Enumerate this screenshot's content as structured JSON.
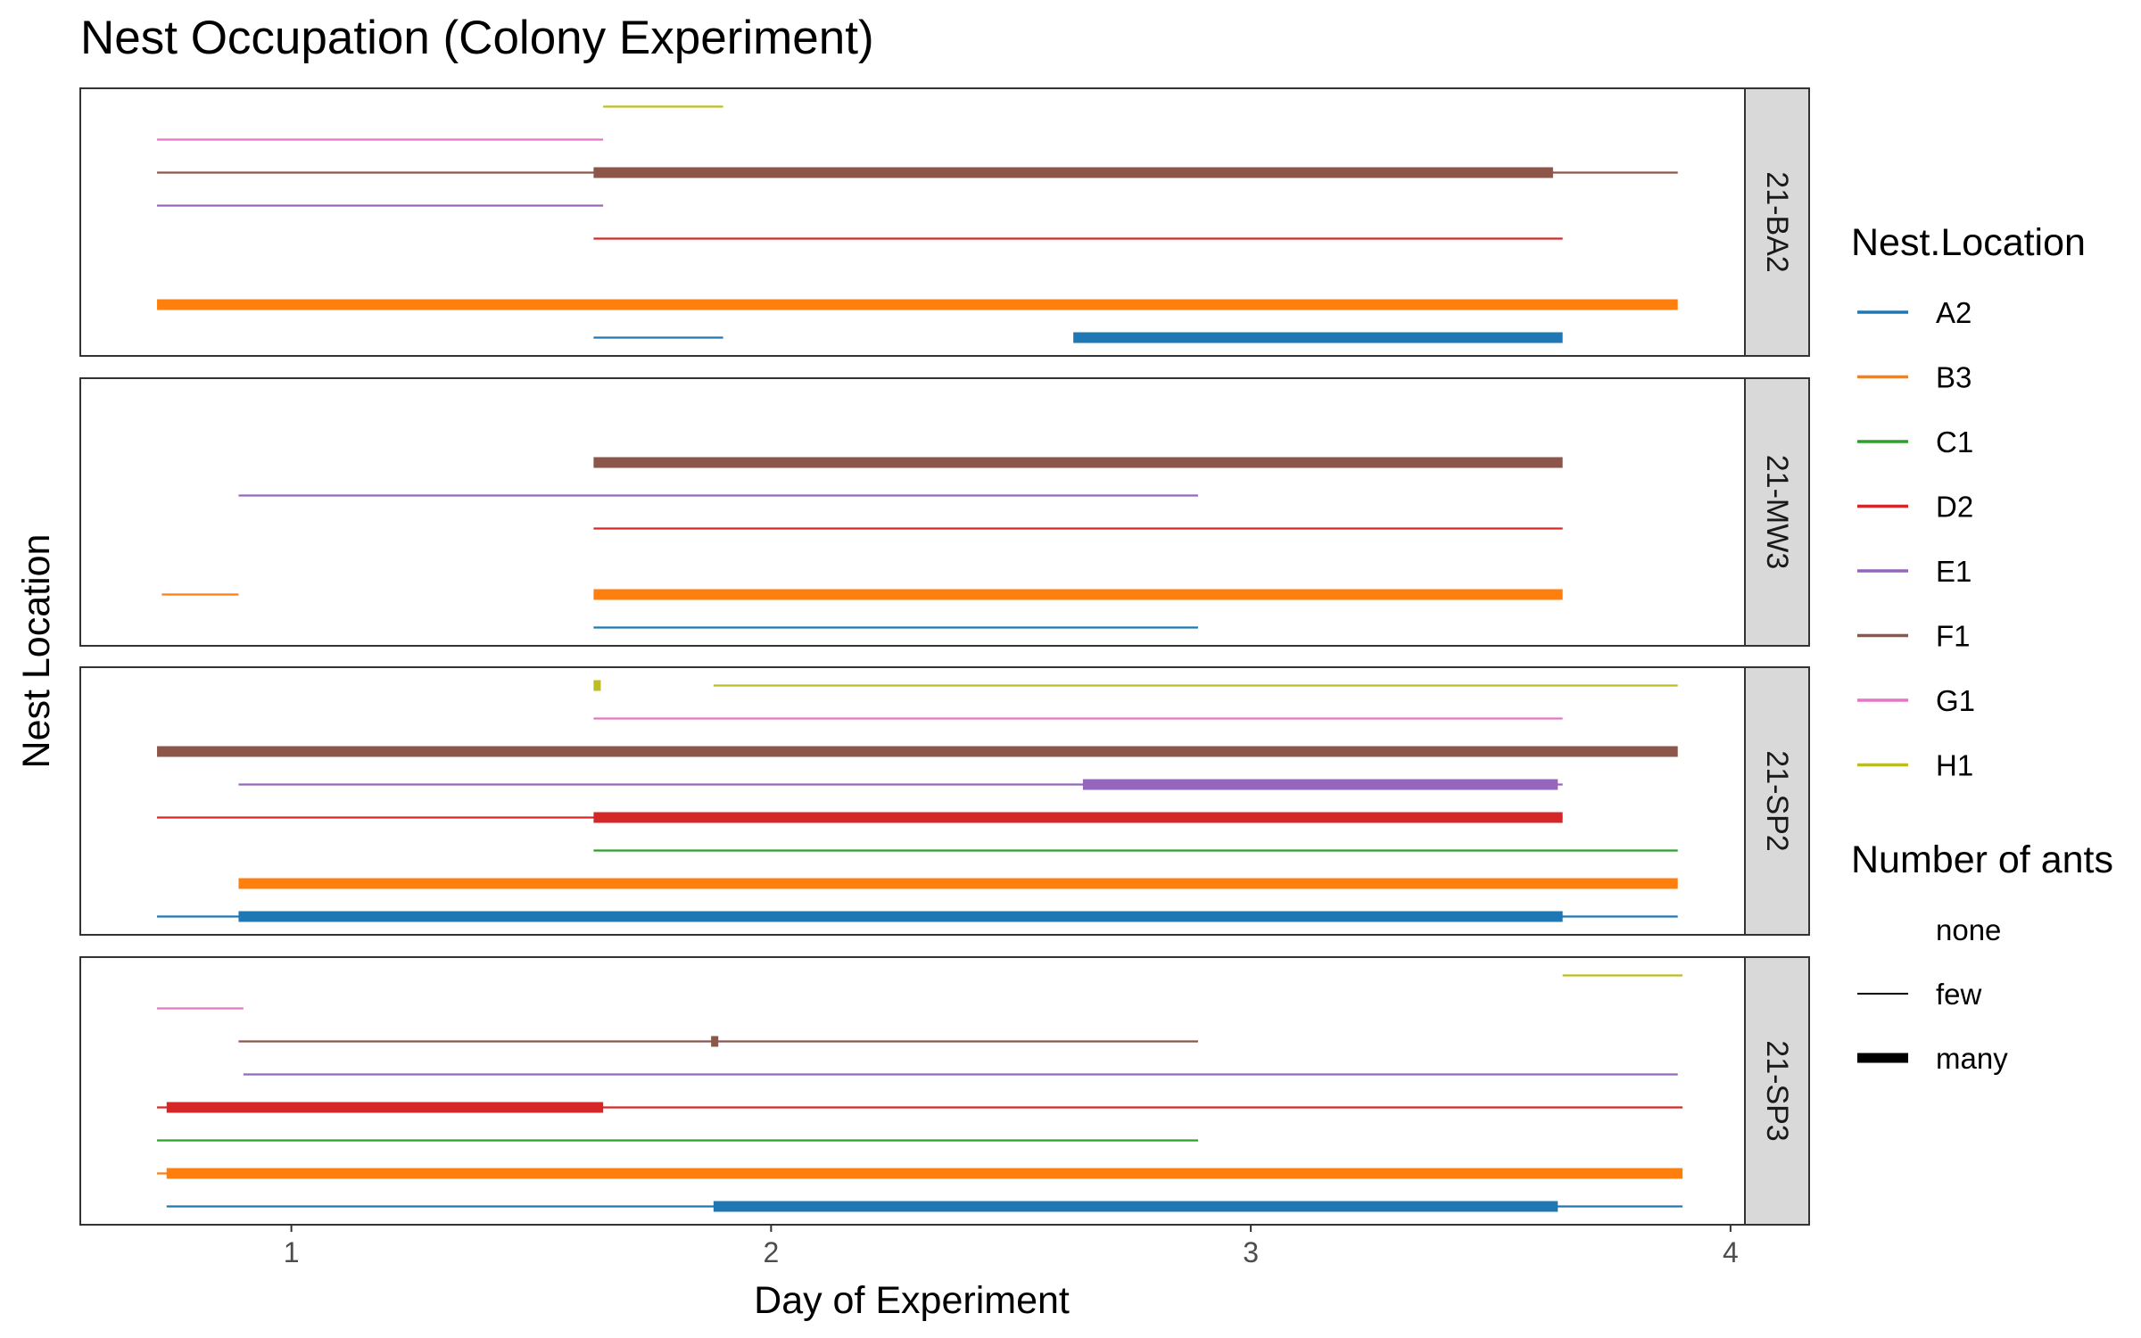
{
  "chart_data": {
    "type": "gantt",
    "title": "Nest Occupation (Colony Experiment)",
    "xlabel": "Day of Experiment",
    "ylabel": "Nest Location",
    "xlim": [
      0.56,
      4.03
    ],
    "x_ticks": [
      1,
      2,
      3,
      4
    ],
    "nest_levels": [
      "A2",
      "B3",
      "C1",
      "D2",
      "E1",
      "F1",
      "G1",
      "H1"
    ],
    "colors": {
      "A2": "#1F77B4",
      "B3": "#FF7F0E",
      "C1": "#2CA02C",
      "D2": "#D62728",
      "E1": "#9467BD",
      "F1": "#8C564B",
      "G1": "#E377C2",
      "H1": "#BCBD22"
    },
    "legend": {
      "color_title": "Nest.Location",
      "size_title": "Number of ants",
      "size_levels": [
        "none",
        "few",
        "many"
      ]
    },
    "panels": [
      {
        "name": "21-BA2",
        "segments": [
          {
            "nest": "A2",
            "x0": 1.63,
            "x1": 1.9,
            "ants": "few"
          },
          {
            "nest": "A2",
            "x0": 2.63,
            "x1": 3.65,
            "ants": "many"
          },
          {
            "nest": "B3",
            "x0": 0.72,
            "x1": 3.89,
            "ants": "many"
          },
          {
            "nest": "D2",
            "x0": 1.63,
            "x1": 3.65,
            "ants": "few"
          },
          {
            "nest": "E1",
            "x0": 0.72,
            "x1": 1.65,
            "ants": "few"
          },
          {
            "nest": "F1",
            "x0": 0.72,
            "x1": 3.89,
            "ants": "few"
          },
          {
            "nest": "F1",
            "x0": 1.63,
            "x1": 3.63,
            "ants": "many"
          },
          {
            "nest": "G1",
            "x0": 0.72,
            "x1": 1.65,
            "ants": "few"
          },
          {
            "nest": "H1",
            "x0": 1.65,
            "x1": 1.9,
            "ants": "few"
          }
        ]
      },
      {
        "name": "21-MW3",
        "segments": [
          {
            "nest": "A2",
            "x0": 1.63,
            "x1": 2.89,
            "ants": "few"
          },
          {
            "nest": "B3",
            "x0": 0.73,
            "x1": 0.89,
            "ants": "few"
          },
          {
            "nest": "B3",
            "x0": 1.63,
            "x1": 3.65,
            "ants": "many"
          },
          {
            "nest": "D2",
            "x0": 1.63,
            "x1": 3.65,
            "ants": "few"
          },
          {
            "nest": "E1",
            "x0": 0.89,
            "x1": 2.89,
            "ants": "few"
          },
          {
            "nest": "F1",
            "x0": 1.63,
            "x1": 3.65,
            "ants": "many"
          }
        ]
      },
      {
        "name": "21-SP2",
        "segments": [
          {
            "nest": "A2",
            "x0": 0.72,
            "x1": 3.89,
            "ants": "few"
          },
          {
            "nest": "A2",
            "x0": 0.89,
            "x1": 3.65,
            "ants": "many"
          },
          {
            "nest": "B3",
            "x0": 0.89,
            "x1": 3.89,
            "ants": "many"
          },
          {
            "nest": "C1",
            "x0": 1.63,
            "x1": 3.89,
            "ants": "few"
          },
          {
            "nest": "D2",
            "x0": 0.72,
            "x1": 3.65,
            "ants": "few"
          },
          {
            "nest": "D2",
            "x0": 1.63,
            "x1": 3.65,
            "ants": "many"
          },
          {
            "nest": "E1",
            "x0": 0.89,
            "x1": 3.65,
            "ants": "few"
          },
          {
            "nest": "E1",
            "x0": 2.65,
            "x1": 3.64,
            "ants": "many"
          },
          {
            "nest": "F1",
            "x0": 0.72,
            "x1": 3.89,
            "ants": "many"
          },
          {
            "nest": "G1",
            "x0": 1.63,
            "x1": 3.65,
            "ants": "few"
          },
          {
            "nest": "H1",
            "x0": 1.63,
            "x1": 1.645,
            "ants": "many"
          },
          {
            "nest": "H1",
            "x0": 1.88,
            "x1": 3.89,
            "ants": "few"
          }
        ]
      },
      {
        "name": "21-SP3",
        "segments": [
          {
            "nest": "A2",
            "x0": 0.74,
            "x1": 3.9,
            "ants": "few"
          },
          {
            "nest": "A2",
            "x0": 1.88,
            "x1": 3.64,
            "ants": "many"
          },
          {
            "nest": "B3",
            "x0": 0.72,
            "x1": 3.9,
            "ants": "few"
          },
          {
            "nest": "B3",
            "x0": 0.74,
            "x1": 3.9,
            "ants": "many"
          },
          {
            "nest": "C1",
            "x0": 0.72,
            "x1": 2.89,
            "ants": "few"
          },
          {
            "nest": "D2",
            "x0": 0.72,
            "x1": 3.9,
            "ants": "few"
          },
          {
            "nest": "D2",
            "x0": 0.74,
            "x1": 1.65,
            "ants": "many"
          },
          {
            "nest": "E1",
            "x0": 0.9,
            "x1": 3.89,
            "ants": "few"
          },
          {
            "nest": "F1",
            "x0": 0.89,
            "x1": 2.89,
            "ants": "few"
          },
          {
            "nest": "F1",
            "x0": 1.875,
            "x1": 1.89,
            "ants": "many"
          },
          {
            "nest": "G1",
            "x0": 0.72,
            "x1": 0.9,
            "ants": "few"
          },
          {
            "nest": "H1",
            "x0": 3.65,
            "x1": 3.9,
            "ants": "few"
          }
        ]
      }
    ]
  }
}
